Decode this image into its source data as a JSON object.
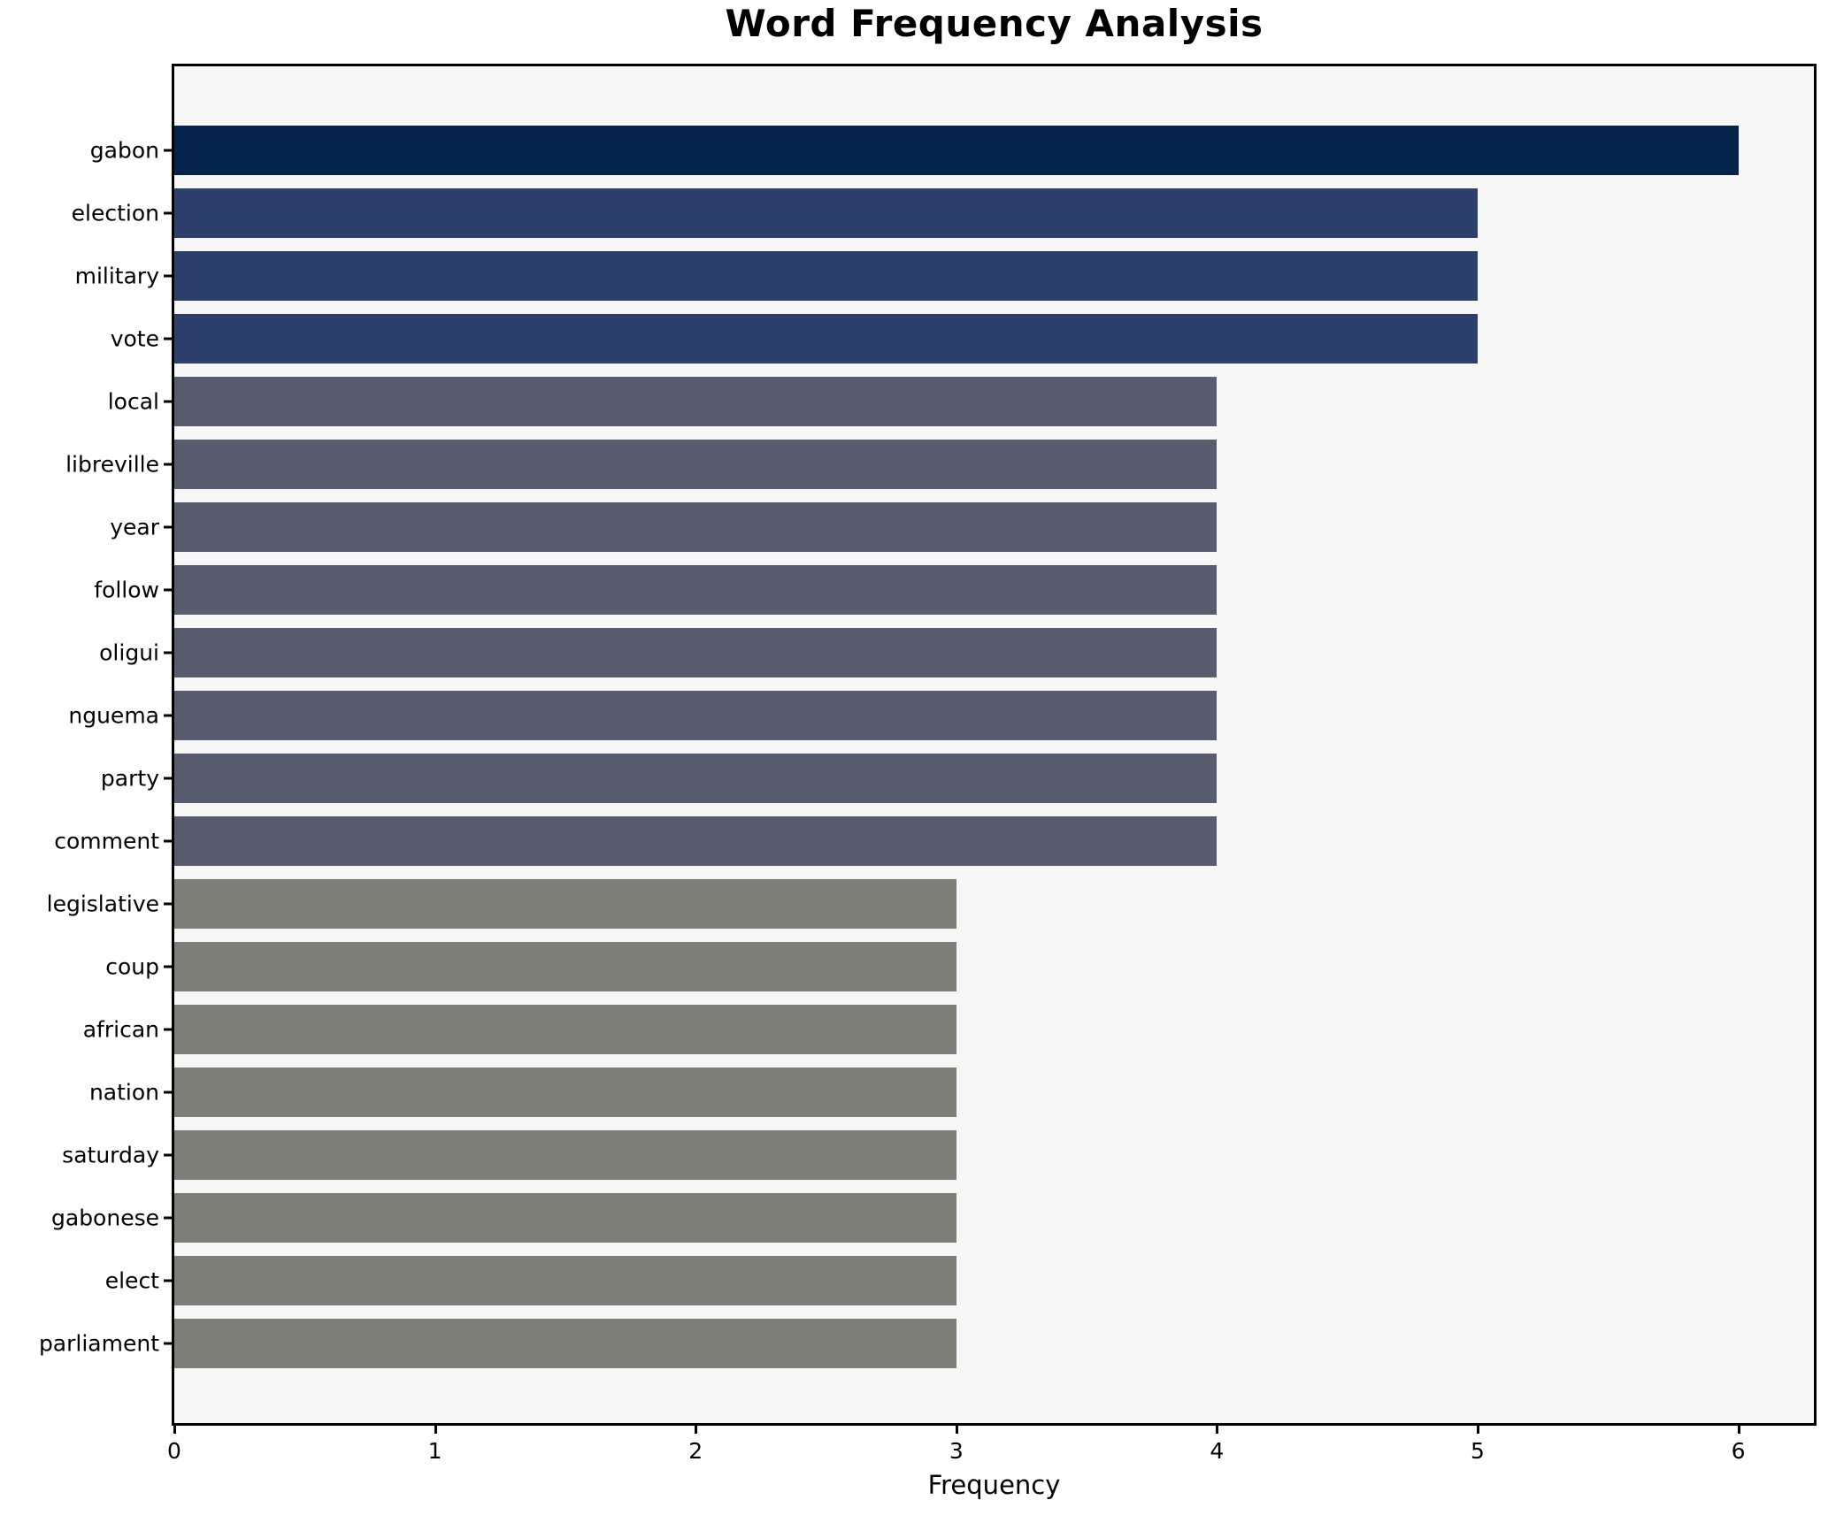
{
  "chart_data": {
    "type": "bar",
    "orientation": "horizontal",
    "title": "Word Frequency Analysis",
    "xlabel": "Frequency",
    "ylabel": "",
    "xlim": [
      0,
      6.29
    ],
    "x_ticks": [
      0,
      1,
      2,
      3,
      4,
      5,
      6
    ],
    "grid": false,
    "legend": "none",
    "plot_background": "#f7f7f7",
    "figure_background": "#ffffff",
    "categories": [
      "gabon",
      "election",
      "military",
      "vote",
      "local",
      "libreville",
      "year",
      "follow",
      "oligui",
      "nguema",
      "party",
      "comment",
      "legislative",
      "coup",
      "african",
      "nation",
      "saturday",
      "gabonese",
      "elect",
      "parliament"
    ],
    "values": [
      6,
      5,
      5,
      5,
      4,
      4,
      4,
      4,
      4,
      4,
      4,
      4,
      3,
      3,
      3,
      3,
      3,
      3,
      3,
      3
    ],
    "bar_colors": [
      "#04234b",
      "#2d406c",
      "#2d406c",
      "#2d406c",
      "#575d6f",
      "#575d6f",
      "#575d6f",
      "#575d6f",
      "#575d6f",
      "#575d6f",
      "#575d6f",
      "#575d6f",
      "#7e7e79",
      "#7e7e79",
      "#7e7e79",
      "#7e7e79",
      "#7e7e79",
      "#7e7e79",
      "#7e7e79",
      "#7e7e79"
    ]
  }
}
